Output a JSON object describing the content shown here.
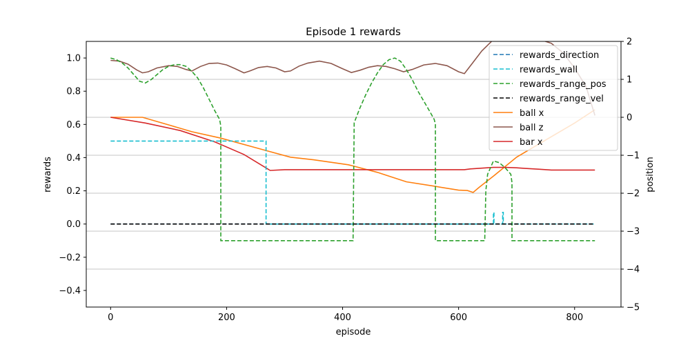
{
  "chart_data": {
    "type": "line",
    "title": "Episode 1 rewards",
    "xlabel": "episode",
    "ylabel": "rewards",
    "y2label": "position",
    "xlim": [
      -42,
      880
    ],
    "ylim": [
      -0.5,
      1.1
    ],
    "y2lim": [
      -5,
      2
    ],
    "xticks": [
      0,
      200,
      400,
      600,
      800
    ],
    "yticks": [
      -0.4,
      -0.2,
      0.0,
      0.2,
      0.4,
      0.6,
      0.8,
      1.0
    ],
    "ytick_labels": [
      "−0.4",
      "−0.2",
      "0.0",
      "0.2",
      "0.4",
      "0.6",
      "0.8",
      "1.0"
    ],
    "y2ticks": [
      -5,
      -4,
      -3,
      -2,
      -1,
      0,
      1,
      2
    ],
    "y2tick_labels": [
      "−5",
      "−4",
      "−3",
      "−2",
      "−1",
      "0",
      "1",
      "2"
    ],
    "grid": "horizontal lines on right axis",
    "legend_position": "top-right",
    "colors": {
      "y2label": "#d62728"
    },
    "series": [
      {
        "name": "rewards_direction",
        "axis": "left",
        "color": "#1f77b4",
        "dash": "dashed",
        "x": [
          0,
          835
        ],
        "y": [
          0,
          0
        ]
      },
      {
        "name": "rewards_wall",
        "axis": "left",
        "color": "#17becf",
        "dash": "dashed",
        "x": [
          0,
          268,
          268,
          660,
          660,
          661,
          661,
          676,
          676,
          677,
          677,
          835
        ],
        "y": [
          0.5,
          0.5,
          0,
          0,
          0.07,
          0.07,
          0,
          0,
          0.07,
          0.07,
          0,
          0
        ]
      },
      {
        "name": "rewards_range_pos",
        "axis": "left",
        "color": "#2ca02c",
        "dash": "dashed",
        "x": [
          0,
          10,
          20,
          30,
          40,
          50,
          60,
          70,
          80,
          90,
          100,
          110,
          120,
          130,
          140,
          150,
          160,
          170,
          180,
          188,
          190,
          190,
          418,
          420,
          430,
          440,
          450,
          460,
          470,
          480,
          490,
          500,
          510,
          520,
          530,
          540,
          550,
          558,
          560,
          560,
          645,
          647,
          650,
          660,
          670,
          680,
          690,
          692,
          692,
          835
        ],
        "y": [
          1.0,
          0.99,
          0.97,
          0.94,
          0.9,
          0.86,
          0.85,
          0.87,
          0.9,
          0.93,
          0.95,
          0.96,
          0.96,
          0.95,
          0.92,
          0.88,
          0.82,
          0.75,
          0.68,
          0.63,
          0.59,
          -0.1,
          -0.1,
          0.61,
          0.7,
          0.78,
          0.85,
          0.91,
          0.96,
          0.99,
          1.0,
          0.98,
          0.93,
          0.87,
          0.8,
          0.74,
          0.68,
          0.63,
          0.6,
          -0.1,
          -0.1,
          0.2,
          0.3,
          0.38,
          0.37,
          0.34,
          0.3,
          0.25,
          -0.1,
          -0.1
        ]
      },
      {
        "name": "rewards_range_vel",
        "axis": "left",
        "color": "#000000",
        "dash": "dashed",
        "x": [
          0,
          835
        ],
        "y": [
          0,
          0
        ]
      },
      {
        "name": "ball x",
        "axis": "right",
        "color": "#ff7f0e",
        "dash": "solid",
        "x": [
          0,
          55,
          100,
          140,
          190,
          250,
          310,
          350,
          410,
          460,
          510,
          560,
          600,
          615,
          625,
          635,
          660,
          700,
          750,
          800,
          835
        ],
        "y": [
          0,
          0,
          -0.2,
          -0.38,
          -0.55,
          -0.8,
          -1.05,
          -1.12,
          -1.25,
          -1.45,
          -1.7,
          -1.82,
          -1.92,
          -1.93,
          -1.98,
          -1.85,
          -1.55,
          -1.05,
          -0.6,
          -0.15,
          0.2
        ]
      },
      {
        "name": "ball z",
        "axis": "right",
        "color": "#8c564b",
        "dash": "solid",
        "x": [
          0,
          15,
          30,
          45,
          55,
          65,
          80,
          100,
          115,
          130,
          140,
          155,
          170,
          185,
          200,
          215,
          230,
          240,
          255,
          270,
          285,
          300,
          310,
          325,
          340,
          360,
          380,
          400,
          415,
          430,
          445,
          460,
          475,
          490,
          505,
          520,
          540,
          560,
          580,
          600,
          610,
          625,
          640,
          660,
          680,
          700,
          720,
          740,
          760,
          780,
          800,
          820,
          835
        ],
        "y": [
          1.5,
          1.48,
          1.4,
          1.25,
          1.17,
          1.2,
          1.3,
          1.36,
          1.34,
          1.26,
          1.22,
          1.34,
          1.42,
          1.43,
          1.38,
          1.28,
          1.17,
          1.22,
          1.31,
          1.34,
          1.3,
          1.2,
          1.22,
          1.35,
          1.43,
          1.48,
          1.42,
          1.28,
          1.18,
          1.24,
          1.32,
          1.36,
          1.34,
          1.28,
          1.2,
          1.26,
          1.38,
          1.42,
          1.36,
          1.2,
          1.15,
          1.45,
          1.75,
          2.05,
          2.2,
          2.2,
          2.15,
          2.05,
          1.95,
          1.7,
          1.3,
          0.8,
          0.05
        ]
      },
      {
        "name": "bar x",
        "axis": "right",
        "color": "#d62728",
        "dash": "solid",
        "x": [
          0,
          60,
          120,
          180,
          230,
          275,
          300,
          400,
          500,
          600,
          610,
          620,
          640,
          660,
          680,
          700,
          720,
          740,
          760,
          800,
          835
        ],
        "y": [
          0,
          -0.15,
          -0.35,
          -0.65,
          -0.98,
          -1.4,
          -1.38,
          -1.38,
          -1.38,
          -1.38,
          -1.38,
          -1.36,
          -1.34,
          -1.32,
          -1.32,
          -1.33,
          -1.35,
          -1.37,
          -1.39,
          -1.39,
          -1.39
        ]
      }
    ]
  }
}
